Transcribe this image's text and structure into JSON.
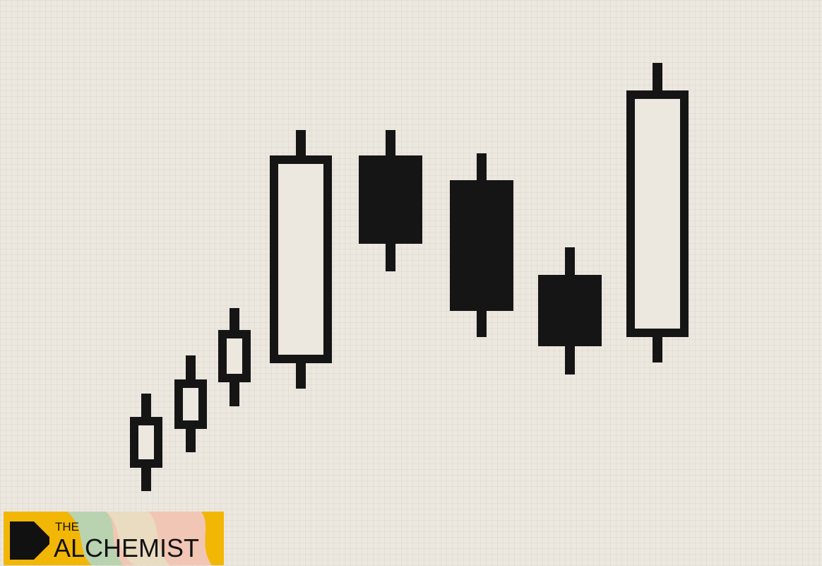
{
  "chart_data": {
    "type": "candlestick",
    "open": [
      139,
      194,
      260,
      287,
      581,
      546,
      412,
      324
    ],
    "close": [
      211,
      264,
      334,
      581,
      456,
      361,
      311,
      673
    ],
    "high": [
      244,
      298,
      365,
      617,
      617,
      584,
      451,
      712
    ],
    "low": [
      106,
      161,
      226,
      251,
      417,
      324,
      271,
      288
    ],
    "ylim": [
      0,
      801
    ],
    "color": "#151515"
  },
  "logo": {
    "line1": "THE",
    "line2": "ALCHEMIST"
  }
}
